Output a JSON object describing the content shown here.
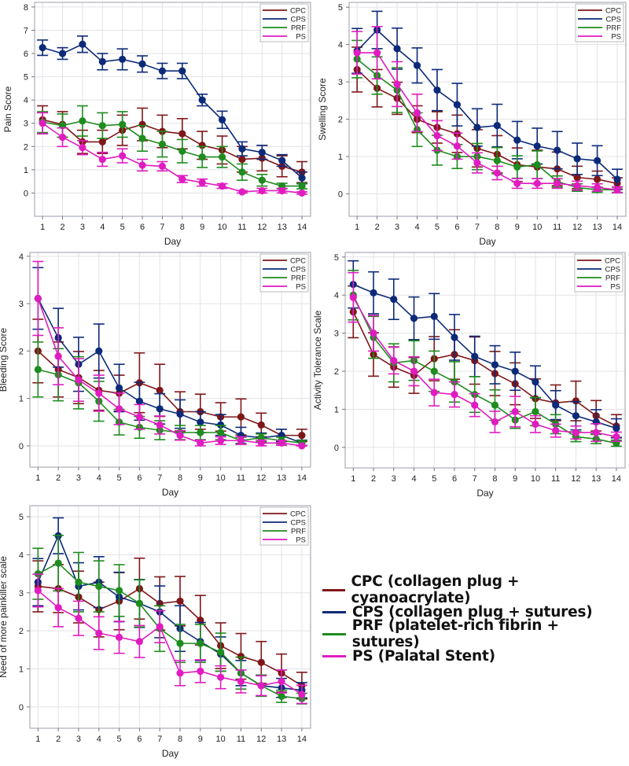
{
  "series_colors": {
    "CPC": "#7f1619",
    "CPS": "#0c2a78",
    "PRF": "#1e8c1e",
    "PS": "#e01cc0"
  },
  "big_legend": [
    {
      "key": "CPC",
      "label": "CPC (collagen plug + cyanoacrylate)"
    },
    {
      "key": "CPS",
      "label": "CPS (collagen plug + sutures)"
    },
    {
      "key": "PRF",
      "label": "PRF (platelet-rich fibrin + sutures)"
    },
    {
      "key": "PS",
      "label": "PS (Palatal Stent)"
    }
  ],
  "chart_data": [
    {
      "type": "line",
      "title": "",
      "xlabel": "Day",
      "ylabel": "Pain Score",
      "categories": [
        1,
        2,
        3,
        4,
        5,
        6,
        7,
        8,
        9,
        10,
        11,
        12,
        13,
        14
      ],
      "yticks": [
        0,
        1,
        2,
        3,
        4,
        5,
        6,
        7,
        8
      ],
      "ylim": [
        -1,
        8.2
      ],
      "legend": "top-right",
      "grid": true,
      "series": [
        {
          "name": "CPC",
          "values": [
            3.15,
            2.95,
            2.2,
            2.2,
            2.7,
            2.95,
            2.65,
            2.55,
            2.05,
            1.85,
            1.45,
            1.5,
            1.15,
            0.9
          ],
          "err": [
            0.6,
            0.55,
            0.5,
            0.5,
            0.65,
            0.7,
            0.7,
            0.65,
            0.6,
            0.6,
            0.55,
            0.55,
            0.45,
            0.45
          ]
        },
        {
          "name": "CPS",
          "values": [
            6.25,
            6.0,
            6.4,
            5.65,
            5.75,
            5.55,
            5.25,
            5.25,
            4.0,
            3.15,
            1.9,
            1.75,
            1.4,
            0.65
          ],
          "err": [
            0.33,
            0.25,
            0.35,
            0.35,
            0.45,
            0.35,
            0.33,
            0.33,
            0.25,
            0.37,
            0.3,
            0.3,
            0.25,
            0.25
          ]
        },
        {
          "name": "PRF",
          "values": [
            3.05,
            2.9,
            3.1,
            2.9,
            2.95,
            2.35,
            2.1,
            1.8,
            1.55,
            1.55,
            0.9,
            0.55,
            0.3,
            0.3
          ],
          "err": [
            0.45,
            0.5,
            0.65,
            0.55,
            0.55,
            0.55,
            0.55,
            0.5,
            0.45,
            0.45,
            0.35,
            0.25,
            0.12,
            0.12
          ]
        },
        {
          "name": "PS",
          "values": [
            3.0,
            2.4,
            1.95,
            1.45,
            1.6,
            1.2,
            1.15,
            0.6,
            0.45,
            0.3,
            0.05,
            0.1,
            0.1,
            0.0
          ],
          "err": [
            0.45,
            0.4,
            0.3,
            0.3,
            0.3,
            0.25,
            0.2,
            0.15,
            0.15,
            0.1,
            0.05,
            0.1,
            0.1,
            0.05
          ]
        }
      ]
    },
    {
      "type": "line",
      "title": "",
      "xlabel": "Day",
      "ylabel": "Swelling Score",
      "categories": [
        1,
        2,
        3,
        4,
        5,
        6,
        7,
        8,
        9,
        10,
        11,
        12,
        13,
        14
      ],
      "yticks": [
        0,
        1,
        2,
        3,
        4,
        5
      ],
      "ylim": [
        -0.6,
        5.13
      ],
      "legend": "top-right",
      "grid": true,
      "series": [
        {
          "name": "CPC",
          "values": [
            3.33,
            2.83,
            2.56,
            2.0,
            1.78,
            1.61,
            1.22,
            1.06,
            0.78,
            0.72,
            0.67,
            0.44,
            0.39,
            0.28
          ],
          "err": [
            0.6,
            0.5,
            0.43,
            0.36,
            0.42,
            0.5,
            0.5,
            0.5,
            0.45,
            0.45,
            0.45,
            0.3,
            0.22,
            0.15
          ]
        },
        {
          "name": "CPS",
          "values": [
            3.83,
            4.39,
            3.89,
            3.44,
            2.78,
            2.39,
            1.78,
            1.83,
            1.44,
            1.28,
            1.17,
            0.94,
            0.89,
            0.39
          ],
          "err": [
            0.6,
            0.5,
            0.55,
            0.47,
            0.55,
            0.57,
            0.5,
            0.57,
            0.5,
            0.48,
            0.5,
            0.42,
            0.4,
            0.27
          ]
        },
        {
          "name": "PRF",
          "values": [
            3.61,
            3.17,
            2.78,
            1.72,
            1.17,
            1.0,
            1.0,
            0.89,
            0.72,
            0.78,
            0.33,
            0.17,
            0.11,
            0.11
          ],
          "err": [
            0.5,
            0.5,
            0.6,
            0.45,
            0.4,
            0.32,
            0.35,
            0.35,
            0.3,
            0.37,
            0.15,
            0.1,
            0.07,
            0.07
          ]
        },
        {
          "name": "PS",
          "values": [
            3.78,
            3.78,
            2.94,
            2.17,
            1.56,
            1.28,
            0.83,
            0.56,
            0.28,
            0.28,
            0.28,
            0.22,
            0.17,
            0.11
          ],
          "err": [
            0.57,
            0.7,
            0.6,
            0.5,
            0.4,
            0.35,
            0.27,
            0.18,
            0.13,
            0.13,
            0.13,
            0.12,
            0.1,
            0.08
          ]
        }
      ]
    },
    {
      "type": "line",
      "title": "",
      "xlabel": "Day",
      "ylabel": "Bleeding Score",
      "categories": [
        1,
        2,
        3,
        4,
        5,
        6,
        7,
        8,
        9,
        10,
        11,
        12,
        13,
        14
      ],
      "yticks": [
        0,
        1,
        2,
        3,
        4
      ],
      "ylim": [
        -0.45,
        4.08
      ],
      "legend": "top-right",
      "grid": true,
      "series": [
        {
          "name": "CPC",
          "values": [
            2.0,
            1.61,
            1.44,
            1.17,
            1.11,
            1.33,
            1.17,
            0.72,
            0.72,
            0.61,
            0.61,
            0.44,
            0.22,
            0.22
          ],
          "err": [
            0.67,
            0.58,
            0.55,
            0.42,
            0.38,
            0.63,
            0.55,
            0.42,
            0.37,
            0.3,
            0.38,
            0.25,
            0.13,
            0.13
          ]
        },
        {
          "name": "CPS",
          "values": [
            3.11,
            2.28,
            1.72,
            2.0,
            1.22,
            0.94,
            0.78,
            0.67,
            0.5,
            0.44,
            0.22,
            0.17,
            0.22,
            0.06
          ],
          "err": [
            0.65,
            0.62,
            0.57,
            0.57,
            0.5,
            0.4,
            0.32,
            0.3,
            0.22,
            0.22,
            0.17,
            0.1,
            0.13,
            0.06
          ]
        },
        {
          "name": "PRF",
          "values": [
            1.61,
            1.5,
            1.33,
            0.94,
            0.5,
            0.39,
            0.33,
            0.28,
            0.28,
            0.28,
            0.11,
            0.17,
            0.11,
            0.06
          ],
          "err": [
            0.58,
            0.55,
            0.55,
            0.42,
            0.27,
            0.23,
            0.2,
            0.15,
            0.15,
            0.15,
            0.07,
            0.08,
            0.07,
            0.05
          ]
        },
        {
          "name": "PS",
          "values": [
            3.11,
            1.89,
            1.39,
            1.11,
            0.78,
            0.61,
            0.44,
            0.22,
            0.06,
            0.11,
            0.11,
            0.06,
            0.06,
            0.0
          ],
          "err": [
            0.78,
            0.6,
            0.45,
            0.38,
            0.33,
            0.26,
            0.19,
            0.1,
            0.06,
            0.08,
            0.08,
            0.06,
            0.05,
            0.0
          ]
        }
      ]
    },
    {
      "type": "line",
      "title": "",
      "xlabel": "Day",
      "ylabel": "Activity Tolerance Scale",
      "categories": [
        1,
        2,
        3,
        4,
        5,
        6,
        7,
        8,
        9,
        10,
        11,
        12,
        13,
        14
      ],
      "yticks": [
        0,
        1,
        2,
        3,
        4,
        5
      ],
      "ylim": [
        -0.54,
        5.12
      ],
      "legend": "top-right",
      "grid": true,
      "series": [
        {
          "name": "CPC",
          "values": [
            3.56,
            2.44,
            2.11,
            1.89,
            2.33,
            2.44,
            2.28,
            1.94,
            1.67,
            1.28,
            1.17,
            1.22,
            0.83,
            0.56
          ],
          "err": [
            0.68,
            0.57,
            0.53,
            0.47,
            0.58,
            0.65,
            0.62,
            0.58,
            0.55,
            0.52,
            0.47,
            0.52,
            0.4,
            0.3
          ]
        },
        {
          "name": "CPS",
          "values": [
            4.28,
            4.06,
            3.89,
            3.39,
            3.44,
            2.89,
            2.39,
            2.17,
            2.0,
            1.72,
            1.11,
            0.83,
            0.67,
            0.5
          ],
          "err": [
            0.62,
            0.55,
            0.53,
            0.56,
            0.6,
            0.6,
            0.53,
            0.5,
            0.5,
            0.42,
            0.38,
            0.37,
            0.32,
            0.25
          ]
        },
        {
          "name": "PRF",
          "values": [
            4.0,
            2.89,
            2.22,
            2.28,
            2.0,
            1.72,
            1.39,
            1.11,
            0.72,
            0.94,
            0.61,
            0.28,
            0.22,
            0.11
          ],
          "err": [
            0.65,
            0.55,
            0.5,
            0.52,
            0.53,
            0.53,
            0.47,
            0.4,
            0.22,
            0.37,
            0.25,
            0.13,
            0.12,
            0.08
          ]
        },
        {
          "name": "PS",
          "values": [
            3.94,
            3.0,
            2.28,
            2.0,
            1.44,
            1.39,
            1.11,
            0.67,
            0.94,
            0.61,
            0.44,
            0.39,
            0.39,
            0.28
          ],
          "err": [
            0.65,
            0.47,
            0.35,
            0.38,
            0.35,
            0.33,
            0.3,
            0.28,
            0.4,
            0.22,
            0.17,
            0.17,
            0.23,
            0.12
          ]
        }
      ]
    },
    {
      "type": "line",
      "title": "",
      "xlabel": "Day",
      "ylabel": "Need of more painkiller scale",
      "categories": [
        1,
        2,
        3,
        4,
        5,
        6,
        7,
        8,
        9,
        10,
        11,
        12,
        13,
        14
      ],
      "yticks": [
        0,
        1,
        2,
        3,
        4,
        5
      ],
      "ylim": [
        -0.56,
        5.29
      ],
      "legend": "top-right",
      "grid": true,
      "series": [
        {
          "name": "CPC",
          "values": [
            3.17,
            3.11,
            2.89,
            2.56,
            2.78,
            3.11,
            2.72,
            2.78,
            2.28,
            1.61,
            1.33,
            1.17,
            0.89,
            0.56
          ],
          "err": [
            0.67,
            0.63,
            0.68,
            0.72,
            0.75,
            0.8,
            0.7,
            0.65,
            0.65,
            0.6,
            0.6,
            0.55,
            0.5,
            0.35
          ]
        },
        {
          "name": "CPS",
          "values": [
            3.28,
            4.5,
            3.17,
            3.28,
            2.89,
            2.72,
            2.5,
            2.06,
            1.72,
            1.39,
            0.89,
            0.56,
            0.5,
            0.44
          ],
          "err": [
            0.62,
            0.47,
            0.62,
            0.67,
            0.65,
            0.63,
            0.68,
            0.6,
            0.5,
            0.45,
            0.33,
            0.27,
            0.25,
            0.2
          ]
        },
        {
          "name": "PRF",
          "values": [
            3.5,
            3.78,
            3.28,
            3.17,
            3.06,
            2.72,
            2.06,
            1.67,
            1.67,
            1.44,
            0.89,
            0.56,
            0.28,
            0.22
          ],
          "err": [
            0.67,
            0.73,
            0.78,
            0.67,
            0.68,
            0.62,
            0.6,
            0.5,
            0.5,
            0.5,
            0.42,
            0.28,
            0.16,
            0.14
          ]
        },
        {
          "name": "PS",
          "values": [
            3.06,
            2.61,
            2.33,
            1.94,
            1.83,
            1.72,
            2.11,
            0.89,
            0.94,
            0.78,
            0.67,
            0.56,
            0.67,
            0.33
          ],
          "err": [
            0.43,
            0.5,
            0.45,
            0.43,
            0.42,
            0.42,
            0.42,
            0.33,
            0.3,
            0.3,
            0.3,
            0.26,
            0.3,
            0.24
          ]
        }
      ]
    }
  ]
}
